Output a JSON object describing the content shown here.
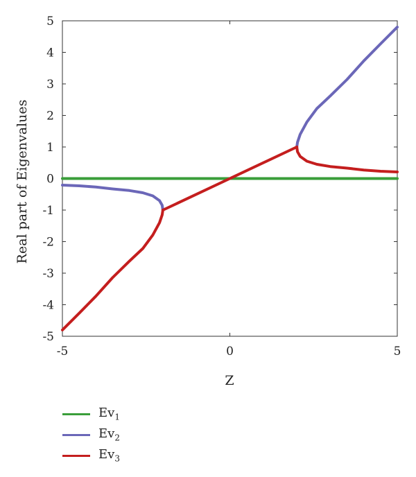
{
  "chart_data": {
    "type": "line",
    "title": "",
    "xlabel": "Z",
    "ylabel": "Real part of Eigenvalues",
    "xlim": [
      -5,
      5
    ],
    "ylim": [
      -5,
      5
    ],
    "xticks": [
      "-5",
      "0",
      "5"
    ],
    "xtick_values": [
      -5,
      0,
      5
    ],
    "yticks": [
      "5",
      "4",
      "3",
      "2",
      "1",
      "0",
      "-1",
      "-2",
      "-3",
      "-4",
      "-5"
    ],
    "ytick_values": [
      5,
      4,
      3,
      2,
      1,
      0,
      -1,
      -2,
      -3,
      -4,
      -5
    ],
    "grid": false,
    "legend_position": "below",
    "series": [
      {
        "name": "Ev1",
        "label_base": "Ev",
        "label_sub": "1",
        "color": "#3a9e3a",
        "segments": [
          {
            "x": [
              -5,
              5
            ],
            "y": [
              0,
              0
            ]
          }
        ]
      },
      {
        "name": "Ev2",
        "label_base": "Ev",
        "label_sub": "2",
        "color": "#6b67b8",
        "segments": [
          {
            "x": [
              -5,
              -4.5,
              -4,
              -3.5,
              -3,
              -2.6,
              -2.3,
              -2.1,
              -2.02,
              -2
            ],
            "y": [
              -0.21,
              -0.23,
              -0.27,
              -0.33,
              -0.38,
              -0.45,
              -0.55,
              -0.7,
              -0.85,
              -1
            ]
          },
          {
            "x": [
              2,
              2.02,
              2.1,
              2.3,
              2.6,
              3,
              3.5,
              4,
              4.5,
              5
            ],
            "y": [
              1,
              1.15,
              1.4,
              1.79,
              2.22,
              2.62,
              3.14,
              3.73,
              4.27,
              4.8
            ]
          }
        ]
      },
      {
        "name": "Ev3",
        "label_base": "Ev",
        "label_sub": "3",
        "color": "#c41e1e",
        "segments": [
          {
            "x": [
              -5,
              -4.5,
              -4,
              -3.5,
              -3,
              -2.6,
              -2.3,
              -2.1,
              -2.02,
              -2
            ],
            "y": [
              -4.8,
              -4.27,
              -3.73,
              -3.14,
              -2.62,
              -2.22,
              -1.79,
              -1.4,
              -1.15,
              -1
            ]
          },
          {
            "x": [
              -2,
              0,
              2
            ],
            "y": [
              -1,
              0,
              1
            ]
          },
          {
            "x": [
              2,
              2.02,
              2.1,
              2.3,
              2.6,
              3,
              3.5,
              4,
              4.5,
              5
            ],
            "y": [
              1,
              0.85,
              0.7,
              0.55,
              0.45,
              0.38,
              0.33,
              0.27,
              0.23,
              0.21
            ]
          }
        ]
      }
    ]
  }
}
